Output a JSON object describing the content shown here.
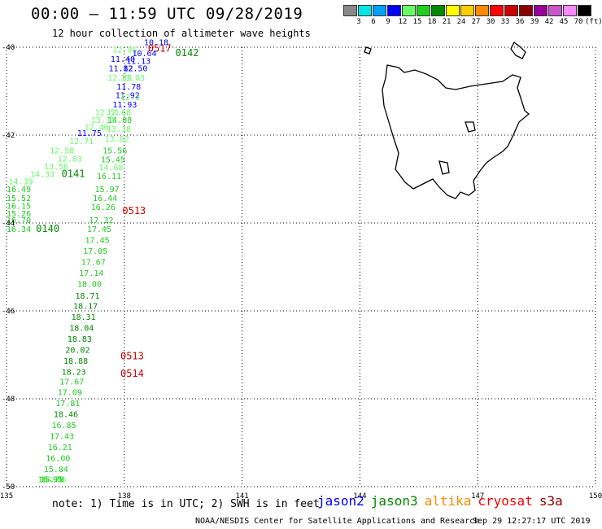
{
  "title": "00:00 — 11:59 UTC 09/28/2019",
  "subtitle": "12 hour collection of altimeter wave heights",
  "colorbar": {
    "labels": [
      "3",
      "6",
      "9",
      "12",
      "15",
      "18",
      "21",
      "24",
      "27",
      "30",
      "33",
      "36",
      "39",
      "42",
      "45",
      "70",
      "(ft)"
    ],
    "colors": [
      "#888888",
      "#00e5e5",
      "#00a0ff",
      "#0000ff",
      "#66ff66",
      "#22cc22",
      "#008800",
      "#ffff00",
      "#ffcc00",
      "#ff8800",
      "#ff0000",
      "#cc0000",
      "#880000",
      "#990099",
      "#cc55cc",
      "#ff88ff",
      "#000000"
    ]
  },
  "axes": {
    "x_ticks": [
      "135",
      "138",
      "141",
      "144",
      "147",
      "150"
    ],
    "y_ticks": [
      "-40",
      "-42",
      "-44",
      "-46",
      "-48",
      "-50"
    ],
    "lon_range": [
      135,
      150
    ],
    "lat_range": [
      -50,
      -40
    ]
  },
  "tracks": [
    {
      "label": "0142",
      "color": "#008800",
      "lon": 139.3,
      "lat": -40.2
    },
    {
      "label": "0517",
      "color": "#cc0000",
      "lon": 138.6,
      "lat": -40.1
    },
    {
      "label": "0141",
      "color": "#008800",
      "lon": 136.4,
      "lat": -42.95
    },
    {
      "label": "0140",
      "color": "#008800",
      "lon": 135.75,
      "lat": -44.2
    },
    {
      "label": "0513",
      "color": "#cc0000",
      "lon": 137.95,
      "lat": -43.8
    },
    {
      "label": "0513",
      "color": "#cc0000",
      "lon": 137.9,
      "lat": -47.1
    },
    {
      "label": "0514",
      "color": "#cc0000",
      "lon": 137.9,
      "lat": -47.5
    }
  ],
  "points": [
    {
      "v": "10.18",
      "c": "#0000ff",
      "lon": 138.5,
      "lat": -39.95
    },
    {
      "v": "12.95",
      "c": "#66ff66",
      "lon": 137.7,
      "lat": -40.12
    },
    {
      "v": "10.64",
      "c": "#0000ff",
      "lon": 138.2,
      "lat": -40.2
    },
    {
      "v": "11.40",
      "c": "#0000ff",
      "lon": 137.65,
      "lat": -40.33
    },
    {
      "v": "11.13",
      "c": "#0000ff",
      "lon": 138.05,
      "lat": -40.38
    },
    {
      "v": "11.82",
      "c": "#0000ff",
      "lon": 137.6,
      "lat": -40.55
    },
    {
      "v": "12.50",
      "c": "#0000ff",
      "lon": 137.97,
      "lat": -40.55
    },
    {
      "v": "12.33",
      "c": "#66ff66",
      "lon": 137.57,
      "lat": -40.76
    },
    {
      "v": "13.03",
      "c": "#66ff66",
      "lon": 137.9,
      "lat": -40.76
    },
    {
      "v": "11.78",
      "c": "#0000ff",
      "lon": 137.8,
      "lat": -40.96
    },
    {
      "v": "11.92",
      "c": "#0000ff",
      "lon": 137.77,
      "lat": -41.16
    },
    {
      "v": "12.3",
      "c": "#66ff66",
      "lon": 137.9,
      "lat": -41.2
    },
    {
      "v": "11.93",
      "c": "#0000ff",
      "lon": 137.7,
      "lat": -41.37
    },
    {
      "v": "12.11",
      "c": "#66ff66",
      "lon": 137.25,
      "lat": -41.55
    },
    {
      "v": "12.68",
      "c": "#66ff66",
      "lon": 137.55,
      "lat": -41.55
    },
    {
      "v": "13.11",
      "c": "#66ff66",
      "lon": 137.15,
      "lat": -41.72
    },
    {
      "v": "14.08",
      "c": "#22cc22",
      "lon": 137.57,
      "lat": -41.72
    },
    {
      "v": "12.46",
      "c": "#66ff66",
      "lon": 136.98,
      "lat": -41.88
    },
    {
      "v": "13.18",
      "c": "#66ff66",
      "lon": 137.55,
      "lat": -41.93
    },
    {
      "v": "11.75",
      "c": "#0000ff",
      "lon": 136.8,
      "lat": -42.02
    },
    {
      "v": "12.71",
      "c": "#66ff66",
      "lon": 136.6,
      "lat": -42.2
    },
    {
      "v": "13.62",
      "c": "#66ff66",
      "lon": 137.5,
      "lat": -42.15
    },
    {
      "v": "12.58",
      "c": "#66ff66",
      "lon": 136.1,
      "lat": -42.42
    },
    {
      "v": "15.56",
      "c": "#22cc22",
      "lon": 137.45,
      "lat": -42.42
    },
    {
      "v": "12.83",
      "c": "#66ff66",
      "lon": 136.3,
      "lat": -42.6
    },
    {
      "v": "15.45",
      "c": "#22cc22",
      "lon": 137.4,
      "lat": -42.62
    },
    {
      "v": "13.56",
      "c": "#66ff66",
      "lon": 135.95,
      "lat": -42.78
    },
    {
      "v": "14.68",
      "c": "#66ff66",
      "lon": 137.35,
      "lat": -42.8
    },
    {
      "v": "14.33",
      "c": "#66ff66",
      "lon": 135.6,
      "lat": -42.95
    },
    {
      "v": "16.11",
      "c": "#22cc22",
      "lon": 137.3,
      "lat": -43.0
    },
    {
      "v": "14.39",
      "c": "#66ff66",
      "lon": 135.05,
      "lat": -43.12
    },
    {
      "v": "16.49",
      "c": "#22cc22",
      "lon": 134.75,
      "lat": -43.3
    },
    {
      "v": "15.97",
      "c": "#22cc22",
      "lon": 137.25,
      "lat": -43.3
    },
    {
      "v": "15.52",
      "c": "#22cc22",
      "lon": 134.55,
      "lat": -43.5
    },
    {
      "v": "16.44",
      "c": "#22cc22",
      "lon": 137.2,
      "lat": -43.5
    },
    {
      "v": "16.15",
      "c": "#22cc22",
      "lon": 134.35,
      "lat": -43.68
    },
    {
      "v": "16.26",
      "c": "#22cc22",
      "lon": 137.15,
      "lat": -43.7
    },
    {
      "v": "15.26",
      "c": "#22cc22",
      "lon": 134.2,
      "lat": -43.85
    },
    {
      "v": "16.70",
      "c": "#22cc22",
      "lon": 134.05,
      "lat": -44.0
    },
    {
      "v": "17.32",
      "c": "#22cc22",
      "lon": 137.1,
      "lat": -44.0
    },
    {
      "v": "16.34",
      "c": "#22cc22",
      "lon": 133.9,
      "lat": -44.2
    },
    {
      "v": "17.45",
      "c": "#22cc22",
      "lon": 137.05,
      "lat": -44.2
    },
    {
      "v": "17.45",
      "c": "#22cc22",
      "lon": 137.0,
      "lat": -44.45
    },
    {
      "v": "17.05",
      "c": "#22cc22",
      "lon": 136.95,
      "lat": -44.7
    },
    {
      "v": "17.67",
      "c": "#22cc22",
      "lon": 136.9,
      "lat": -44.95
    },
    {
      "v": "17.14",
      "c": "#22cc22",
      "lon": 136.85,
      "lat": -45.2
    },
    {
      "v": "18.00",
      "c": "#22cc22",
      "lon": 136.8,
      "lat": -45.45
    },
    {
      "v": "18.71",
      "c": "#008800",
      "lon": 136.75,
      "lat": -45.72
    },
    {
      "v": "18.17",
      "c": "#008800",
      "lon": 136.7,
      "lat": -45.95
    },
    {
      "v": "18.31",
      "c": "#008800",
      "lon": 136.65,
      "lat": -46.2
    },
    {
      "v": "18.04",
      "c": "#008800",
      "lon": 136.6,
      "lat": -46.45
    },
    {
      "v": "18.83",
      "c": "#008800",
      "lon": 136.55,
      "lat": -46.7
    },
    {
      "v": "20.02",
      "c": "#008800",
      "lon": 136.5,
      "lat": -46.95
    },
    {
      "v": "18.88",
      "c": "#008800",
      "lon": 136.45,
      "lat": -47.2
    },
    {
      "v": "18.23",
      "c": "#008800",
      "lon": 136.4,
      "lat": -47.45
    },
    {
      "v": "17.67",
      "c": "#22cc22",
      "lon": 136.35,
      "lat": -47.68
    },
    {
      "v": "17.09",
      "c": "#22cc22",
      "lon": 136.3,
      "lat": -47.92
    },
    {
      "v": "17.81",
      "c": "#22cc22",
      "lon": 136.25,
      "lat": -48.17
    },
    {
      "v": "18.46",
      "c": "#008800",
      "lon": 136.2,
      "lat": -48.42
    },
    {
      "v": "16.85",
      "c": "#22cc22",
      "lon": 136.15,
      "lat": -48.67
    },
    {
      "v": "17.43",
      "c": "#22cc22",
      "lon": 136.1,
      "lat": -48.92
    },
    {
      "v": "16.21",
      "c": "#22cc22",
      "lon": 136.05,
      "lat": -49.17
    },
    {
      "v": "16.00",
      "c": "#22cc22",
      "lon": 136.0,
      "lat": -49.42
    },
    {
      "v": "15.84",
      "c": "#22cc22",
      "lon": 135.95,
      "lat": -49.67
    },
    {
      "v": "14.76",
      "c": "#66ff66",
      "lon": 135.9,
      "lat": -49.92
    },
    {
      "v": "15.78",
      "c": "#22cc22",
      "lon": 135.85,
      "lat": -50.17
    },
    {
      "v": "16.95",
      "c": "#22cc22",
      "lon": 135.8,
      "lat": -50.42
    }
  ],
  "note": "note: 1) Time is in UTC; 2) SWH is in feet",
  "legend": [
    {
      "name": "jason2",
      "color": "#0000ff"
    },
    {
      "name": "jason3",
      "color": "#008800"
    },
    {
      "name": "altika",
      "color": "#ff8800"
    },
    {
      "name": "cryosat",
      "color": "#ff0000"
    },
    {
      "name": "s3a",
      "color": "#880000"
    }
  ],
  "credit": "NOAA/NESDIS Center for Satellite Applications and Research",
  "timestamp": "Sep 29 12:27:17 UTC 2019"
}
